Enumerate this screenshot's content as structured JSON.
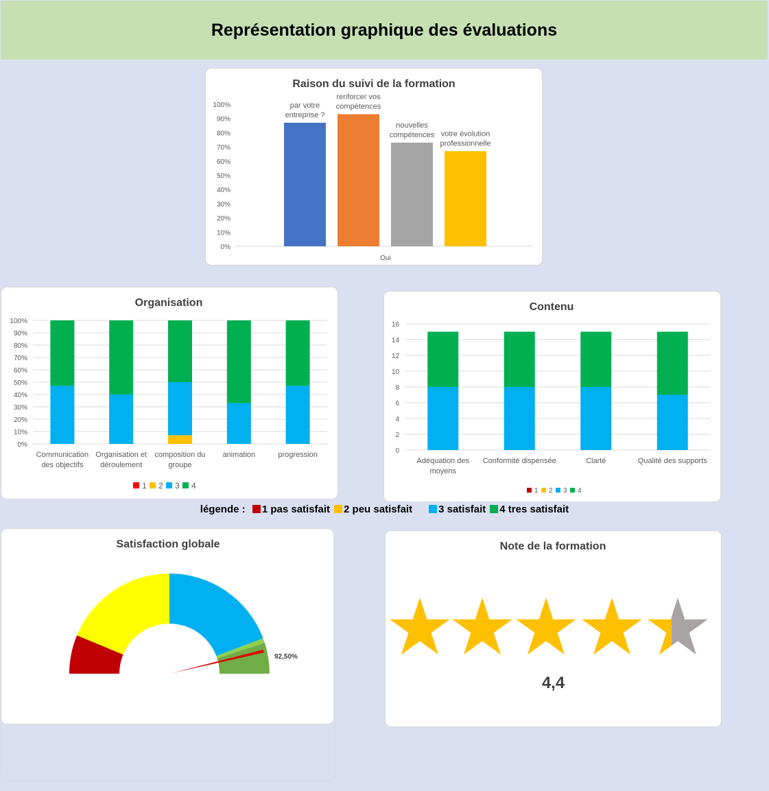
{
  "header": {
    "title": "Représentation graphique des évaluations"
  },
  "legend_text": {
    "prefix": "légende :",
    "items": [
      {
        "label": "1 pas satisfait",
        "color": "#c00000"
      },
      {
        "label": "2 peu satisfait",
        "color": "#ffc000"
      },
      {
        "label": "3 satisfait",
        "color": "#00b0f0"
      },
      {
        "label": "4 tres satisfait",
        "color": "#00b050"
      }
    ]
  },
  "chart_data": [
    {
      "id": "raison",
      "type": "bar",
      "title": "Raison du suivi de la formation",
      "categories": [
        "Oui"
      ],
      "ylim": [
        0,
        100
      ],
      "yticks": [
        "0%",
        "10%",
        "20%",
        "30%",
        "40%",
        "50%",
        "60%",
        "70%",
        "80%",
        "90%",
        "100%"
      ],
      "series": [
        {
          "name": "par votre entreprise ?",
          "label_lines": [
            "par votre",
            "entreprise ?"
          ],
          "values": [
            87
          ],
          "color": "#4472c4"
        },
        {
          "name": "renforcer vos compétences",
          "label_lines": [
            "renforcer vos",
            "compétences"
          ],
          "values": [
            93
          ],
          "color": "#ed7d31"
        },
        {
          "name": "nouvelles compétences",
          "label_lines": [
            "nouvelles",
            "compétences"
          ],
          "values": [
            73
          ],
          "color": "#a5a5a5"
        },
        {
          "name": "votre évolution professionnelle",
          "label_lines": [
            "votre évolution",
            "professionnelle"
          ],
          "values": [
            67
          ],
          "color": "#ffc000"
        }
      ]
    },
    {
      "id": "organisation",
      "type": "bar",
      "stacked": true,
      "title": "Organisation",
      "categories": [
        [
          "Communication",
          "des objectifs"
        ],
        [
          "Organisation et",
          "déroulement"
        ],
        [
          "composition du",
          "groupe"
        ],
        [
          "animation"
        ],
        [
          "progression"
        ]
      ],
      "ylim": [
        0,
        100
      ],
      "yticks": [
        "0%",
        "10%",
        "20%",
        "30%",
        "40%",
        "50%",
        "60%",
        "70%",
        "80%",
        "90%",
        "100%"
      ],
      "legend": "bottom",
      "series": [
        {
          "name": "1",
          "values": [
            0,
            0,
            0,
            0,
            0
          ],
          "color": "#ff0000"
        },
        {
          "name": "2",
          "values": [
            0,
            0,
            7,
            0,
            0
          ],
          "color": "#ffc000"
        },
        {
          "name": "3",
          "values": [
            47,
            40,
            43,
            33,
            47
          ],
          "color": "#00b0f0"
        },
        {
          "name": "4",
          "values": [
            53,
            60,
            50,
            67,
            53
          ],
          "color": "#00b050"
        }
      ]
    },
    {
      "id": "contenu",
      "type": "bar",
      "stacked": true,
      "title": "Contenu",
      "categories": [
        [
          "Adéquation des",
          "moyens"
        ],
        [
          "Conformité dispensée"
        ],
        [
          "Clarté"
        ],
        [
          "Qualité des supports"
        ]
      ],
      "ylim": [
        0,
        16
      ],
      "yticks": [
        "0",
        "2",
        "4",
        "6",
        "8",
        "10",
        "12",
        "14",
        "16"
      ],
      "legend": "bottom",
      "series": [
        {
          "name": "1",
          "values": [
            0,
            0,
            0,
            0
          ],
          "color": "#c00000"
        },
        {
          "name": "2",
          "values": [
            0,
            0,
            0,
            0
          ],
          "color": "#ffc000"
        },
        {
          "name": "3",
          "values": [
            8,
            8,
            8,
            7
          ],
          "color": "#00b0f0"
        },
        {
          "name": "4",
          "values": [
            7,
            7,
            7,
            8
          ],
          "color": "#00b050"
        }
      ]
    },
    {
      "id": "satisfaction",
      "type": "pie",
      "style": "gauge",
      "title": "Satisfaction globale",
      "segments": [
        {
          "name": "1",
          "value": 12.5,
          "color": "#c00000"
        },
        {
          "name": "2",
          "value": 37.5,
          "color": "#ffff00"
        },
        {
          "name": "3",
          "value": 38.5,
          "color": "#00b0f0"
        },
        {
          "name": "3-4",
          "value": 1.5,
          "color": "#92d050"
        },
        {
          "name": "4",
          "value": 10,
          "color": "#70ad47"
        }
      ],
      "needle_value": 92.5,
      "needle_label": "92,50%",
      "needle_color": "#e00000"
    },
    {
      "id": "note",
      "type": "rating",
      "title": "Note de la formation",
      "value": 4.4,
      "max": 5,
      "value_label": "4,4",
      "star_color": "#ffc000",
      "empty_color": "#a9a4a4"
    }
  ]
}
